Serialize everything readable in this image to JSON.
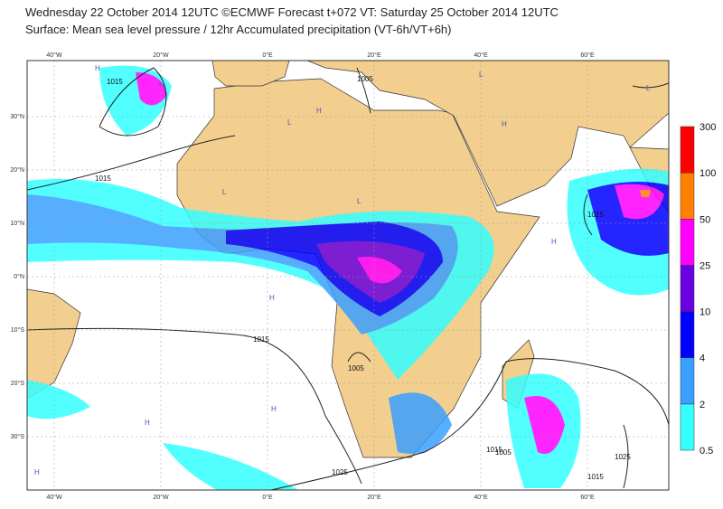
{
  "header": {
    "line1": "Wednesday 22 October 2014 12UTC ©ECMWF Forecast t+072 VT: Saturday 25 October 2014 12UTC",
    "line2": "Surface: Mean sea level pressure / 12hr Accumulated precipitation (VT-6h/VT+6h)"
  },
  "map": {
    "lon_labels": [
      "40°W",
      "20°W",
      "0°E",
      "20°E",
      "40°E",
      "60°E"
    ],
    "lat_labels": [
      "30°N",
      "20°N",
      "10°N",
      "0°N",
      "10°S",
      "20°S",
      "30°S"
    ],
    "contour_labels": [
      "1015",
      "1015",
      "1015",
      "1005",
      "1015",
      "1005",
      "1025",
      "1015",
      "1025",
      "1015",
      "1005"
    ],
    "centers": [
      "H",
      "H",
      "L",
      "L",
      "H",
      "L",
      "H",
      "H",
      "L",
      "H",
      "H",
      "L",
      "H",
      "H"
    ]
  },
  "legend": {
    "levels": [
      0.5,
      2,
      4,
      10,
      25,
      50,
      100,
      300
    ],
    "colors": [
      "#33ffff",
      "#3aa0ff",
      "#0000ff",
      "#6a00e0",
      "#ff00ff",
      "#ff8000",
      "#ff0000"
    ]
  }
}
